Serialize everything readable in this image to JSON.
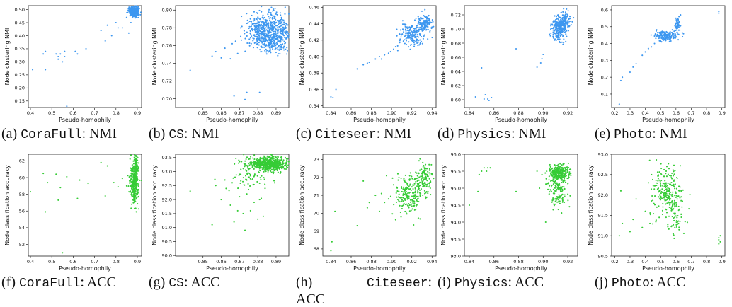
{
  "colors": {
    "nmi": "#3d97f0",
    "acc": "#36cc36"
  },
  "figure": {
    "captions": [
      {
        "prefix": "(a)",
        "dataset": "CoraFull",
        "metric": ": NMI"
      },
      {
        "prefix": "(b)",
        "dataset": "CS",
        "metric": ": NMI"
      },
      {
        "prefix": "(c)",
        "dataset": "Citeseer",
        "metric": ": NMI"
      },
      {
        "prefix": "(d)",
        "dataset": "Physics",
        "metric": ": NMI"
      },
      {
        "prefix": "(e)",
        "dataset": "Photo",
        "metric": ": NMI"
      },
      {
        "prefix": "(f)",
        "dataset": "CoraFull",
        "metric": ": ACC"
      },
      {
        "prefix": "(g)",
        "dataset": "CS",
        "metric": ": ACC"
      },
      {
        "prefix": "(h)",
        "dataset": "Citeseer",
        "metric": ": ACC"
      },
      {
        "prefix": "(i)",
        "dataset": "Physics",
        "metric": ": ACC"
      },
      {
        "prefix": "(j)",
        "dataset": "Photo",
        "metric": ": ACC"
      }
    ]
  },
  "chart_data": [
    {
      "type": "scatter",
      "color": "nmi",
      "xlabel": "Pseudo-homophily",
      "ylabel": "Node clustering NMI",
      "xlim": [
        0.39,
        0.92
      ],
      "ylim": [
        0.125,
        0.515
      ],
      "xticks": [
        0.4,
        0.5,
        0.6,
        0.7,
        0.8,
        0.9
      ],
      "xtick_labels": [
        "0.4",
        "0.5",
        "0.6",
        "0.7",
        "0.8",
        "0.9"
      ],
      "yticks": [
        0.15,
        0.2,
        0.25,
        0.3,
        0.35,
        0.4,
        0.45,
        0.5
      ],
      "ytick_labels": [
        "0.15",
        "0.20",
        "0.25",
        "0.30",
        "0.35",
        "0.40",
        "0.45",
        "0.50"
      ],
      "points": [
        [
          0.41,
          0.27
        ],
        [
          0.46,
          0.33
        ],
        [
          0.47,
          0.34
        ],
        [
          0.47,
          0.27
        ],
        [
          0.52,
          0.33
        ],
        [
          0.53,
          0.32
        ],
        [
          0.53,
          0.31
        ],
        [
          0.54,
          0.33
        ],
        [
          0.55,
          0.3
        ],
        [
          0.56,
          0.32
        ],
        [
          0.56,
          0.34
        ],
        [
          0.57,
          0.13
        ],
        [
          0.61,
          0.34
        ],
        [
          0.62,
          0.33
        ],
        [
          0.66,
          0.35
        ],
        [
          0.73,
          0.42
        ],
        [
          0.75,
          0.38
        ],
        [
          0.76,
          0.44
        ],
        [
          0.78,
          0.4
        ],
        [
          0.8,
          0.45
        ],
        [
          0.81,
          0.43
        ],
        [
          0.83,
          0.43
        ],
        [
          0.85,
          0.47
        ],
        [
          0.86,
          0.41
        ],
        [
          0.87,
          0.45
        ]
      ],
      "clusters": [
        {
          "cx": 0.886,
          "cy": 0.493,
          "sx": 0.012,
          "sy": 0.01,
          "n": 320
        }
      ]
    },
    {
      "type": "scatter",
      "color": "nmi",
      "xlabel": "Pseudo-homophily",
      "ylabel": "Node clustering NMI",
      "xlim": [
        0.835,
        0.897
      ],
      "ylim": [
        0.69,
        0.805
      ],
      "xticks": [
        0.85,
        0.86,
        0.87,
        0.88,
        0.89
      ],
      "xtick_labels": [
        "0.85",
        "0.86",
        "0.87",
        "0.88",
        "0.89"
      ],
      "yticks": [
        0.7,
        0.72,
        0.74,
        0.76,
        0.78,
        0.8
      ],
      "ytick_labels": [
        "0.70",
        "0.72",
        "0.74",
        "0.76",
        "0.78",
        "0.80"
      ],
      "points": [
        [
          0.843,
          0.732
        ],
        [
          0.855,
          0.748
        ],
        [
          0.857,
          0.753
        ],
        [
          0.86,
          0.746
        ],
        [
          0.862,
          0.757
        ],
        [
          0.865,
          0.745
        ],
        [
          0.866,
          0.762
        ],
        [
          0.867,
          0.703
        ],
        [
          0.869,
          0.751
        ],
        [
          0.871,
          0.766
        ],
        [
          0.873,
          0.699
        ],
        [
          0.874,
          0.707
        ],
        [
          0.878,
          0.798
        ],
        [
          0.881,
          0.707
        ]
      ],
      "clusters": [
        {
          "cx": 0.886,
          "cy": 0.778,
          "sx": 0.006,
          "sy": 0.01,
          "n": 520
        },
        {
          "cx": 0.888,
          "cy": 0.765,
          "sx": 0.005,
          "sy": 0.006,
          "n": 180
        }
      ]
    },
    {
      "type": "scatter",
      "color": "nmi",
      "xlabel": "Pseudo-homophily",
      "ylabel": "Node clustering NMI",
      "xlim": [
        0.832,
        0.944
      ],
      "ylim": [
        0.338,
        0.462
      ],
      "xticks": [
        0.84,
        0.86,
        0.88,
        0.9,
        0.92,
        0.94
      ],
      "xtick_labels": [
        "0.84",
        "0.86",
        "0.88",
        "0.90",
        "0.92",
        "0.94"
      ],
      "yticks": [
        0.34,
        0.36,
        0.38,
        0.4,
        0.42,
        0.44,
        0.46
      ],
      "ytick_labels": [
        "0.34",
        "0.36",
        "0.38",
        "0.40",
        "0.42",
        "0.44",
        "0.46"
      ],
      "points": [
        [
          0.84,
          0.351
        ],
        [
          0.842,
          0.35
        ],
        [
          0.845,
          0.36
        ],
        [
          0.866,
          0.385
        ],
        [
          0.872,
          0.39
        ],
        [
          0.876,
          0.392
        ],
        [
          0.878,
          0.393
        ],
        [
          0.884,
          0.397
        ],
        [
          0.888,
          0.4
        ],
        [
          0.89,
          0.397
        ],
        [
          0.893,
          0.402
        ],
        [
          0.897,
          0.404
        ],
        [
          0.899,
          0.406
        ],
        [
          0.902,
          0.409
        ],
        [
          0.904,
          0.412
        ],
        [
          0.906,
          0.413
        ],
        [
          0.908,
          0.417
        ]
      ],
      "clusters": [
        {
          "cx": 0.92,
          "cy": 0.426,
          "sx": 0.006,
          "sy": 0.006,
          "n": 170
        },
        {
          "cx": 0.932,
          "cy": 0.44,
          "sx": 0.004,
          "sy": 0.005,
          "n": 150
        }
      ]
    },
    {
      "type": "scatter",
      "color": "nmi",
      "xlabel": "Pseudo-homophily",
      "ylabel": "Node clustering NMI",
      "xlim": [
        0.836,
        0.928
      ],
      "ylim": [
        0.589,
        0.733
      ],
      "xticks": [
        0.84,
        0.86,
        0.88,
        0.9,
        0.92
      ],
      "xtick_labels": [
        "0.84",
        "0.86",
        "0.88",
        "0.90",
        "0.92"
      ],
      "yticks": [
        0.6,
        0.62,
        0.64,
        0.66,
        0.68,
        0.7,
        0.72
      ],
      "ytick_labels": [
        "0.60",
        "0.62",
        "0.64",
        "0.66",
        "0.68",
        "0.70",
        "0.72"
      ],
      "points": [
        [
          0.845,
          0.604
        ],
        [
          0.85,
          0.645
        ],
        [
          0.852,
          0.601
        ],
        [
          0.853,
          0.607
        ],
        [
          0.855,
          0.601
        ],
        [
          0.856,
          0.599
        ],
        [
          0.858,
          0.603
        ],
        [
          0.878,
          0.672
        ],
        [
          0.895,
          0.646
        ],
        [
          0.898,
          0.652
        ],
        [
          0.899,
          0.658
        ],
        [
          0.9,
          0.664
        ]
      ],
      "clusters": [
        {
          "cx": 0.913,
          "cy": 0.7,
          "sx": 0.0028,
          "sy": 0.008,
          "n": 260
        },
        {
          "cx": 0.918,
          "cy": 0.712,
          "sx": 0.003,
          "sy": 0.006,
          "n": 120
        }
      ]
    },
    {
      "type": "scatter",
      "color": "nmi",
      "xlabel": "Pseudo-homophily",
      "ylabel": "Node clustering NMI",
      "xlim": [
        0.18,
        0.92
      ],
      "ylim": [
        0.02,
        0.625
      ],
      "xticks": [
        0.2,
        0.3,
        0.4,
        0.5,
        0.6,
        0.7,
        0.8,
        0.9
      ],
      "xtick_labels": [
        "0.2",
        "0.3",
        "0.4",
        "0.5",
        "0.6",
        "0.7",
        "0.8",
        "0.9"
      ],
      "yticks": [
        0.1,
        0.2,
        0.3,
        0.4,
        0.5,
        0.6
      ],
      "ytick_labels": [
        "0.1",
        "0.2",
        "0.3",
        "0.4",
        "0.5",
        "0.6"
      ],
      "points": [
        [
          0.23,
          0.04
        ],
        [
          0.24,
          0.18
        ],
        [
          0.25,
          0.2
        ],
        [
          0.3,
          0.23
        ],
        [
          0.32,
          0.26
        ],
        [
          0.34,
          0.28
        ],
        [
          0.38,
          0.33
        ],
        [
          0.4,
          0.35
        ],
        [
          0.42,
          0.37
        ],
        [
          0.44,
          0.38
        ],
        [
          0.46,
          0.4
        ],
        [
          0.6,
          0.55
        ],
        [
          0.62,
          0.56
        ],
        [
          0.63,
          0.57
        ],
        [
          0.88,
          0.58
        ],
        [
          0.88,
          0.59
        ]
      ],
      "clusters": [
        {
          "cx": 0.53,
          "cy": 0.445,
          "sx": 0.04,
          "sy": 0.014,
          "n": 170
        },
        {
          "cx": 0.61,
          "cy": 0.51,
          "sx": 0.012,
          "sy": 0.02,
          "n": 40
        }
      ]
    },
    {
      "type": "scatter",
      "color": "acc",
      "xlabel": "Pseudo-homophily",
      "ylabel": "Node classification accuracy",
      "xlim": [
        0.39,
        0.92
      ],
      "ylim": [
        50.6,
        62.8
      ],
      "xticks": [
        0.4,
        0.5,
        0.6,
        0.7,
        0.8,
        0.9
      ],
      "xtick_labels": [
        "0.4",
        "0.5",
        "0.6",
        "0.7",
        "0.8",
        "0.9"
      ],
      "yticks": [
        52,
        54,
        56,
        58,
        60,
        62
      ],
      "ytick_labels": [
        "52",
        "54",
        "56",
        "58",
        "60",
        "62"
      ],
      "points": [
        [
          0.4,
          58.3
        ],
        [
          0.46,
          60.5
        ],
        [
          0.47,
          55.9
        ],
        [
          0.48,
          59.4
        ],
        [
          0.52,
          60.4
        ],
        [
          0.53,
          57.3
        ],
        [
          0.54,
          58.8
        ],
        [
          0.55,
          51.0
        ],
        [
          0.57,
          60.1
        ],
        [
          0.62,
          57.5
        ],
        [
          0.63,
          59.7
        ],
        [
          0.67,
          59.3
        ],
        [
          0.73,
          61.8
        ],
        [
          0.75,
          57.8
        ],
        [
          0.76,
          61.4
        ],
        [
          0.79,
          59.4
        ],
        [
          0.81,
          58.9
        ],
        [
          0.83,
          59.9
        ],
        [
          0.85,
          59.0
        ]
      ],
      "clusters": [
        {
          "cx": 0.886,
          "cy": 59.2,
          "sx": 0.01,
          "sy": 1.2,
          "n": 300
        },
        {
          "cx": 0.895,
          "cy": 61.0,
          "sx": 0.005,
          "sy": 0.9,
          "n": 120
        }
      ]
    },
    {
      "type": "scatter",
      "color": "acc",
      "xlabel": "Pseudo-homophily",
      "ylabel": "Node classification accuracy",
      "xlim": [
        0.835,
        0.897
      ],
      "ylim": [
        89.98,
        93.62
      ],
      "xticks": [
        0.85,
        0.86,
        0.87,
        0.88,
        0.89
      ],
      "xtick_labels": [
        "0.85",
        "0.86",
        "0.87",
        "0.88",
        "0.89"
      ],
      "yticks": [
        90.0,
        90.5,
        91.0,
        91.5,
        92.0,
        92.5,
        93.0,
        93.5
      ],
      "ytick_labels": [
        "90.0",
        "90.5",
        "91.0",
        "91.5",
        "92.0",
        "92.5",
        "93.0",
        "93.5"
      ],
      "points": [
        [
          0.843,
          92.3
        ],
        [
          0.855,
          91.1
        ],
        [
          0.857,
          92.5
        ],
        [
          0.86,
          92.0
        ],
        [
          0.862,
          92.7
        ],
        [
          0.865,
          91.8
        ],
        [
          0.866,
          92.6
        ],
        [
          0.867,
          91.2
        ],
        [
          0.869,
          91.6
        ],
        [
          0.87,
          92.1
        ],
        [
          0.872,
          91.5
        ],
        [
          0.873,
          90.9
        ],
        [
          0.874,
          92.2
        ],
        [
          0.876,
          91.6
        ],
        [
          0.878,
          91.9
        ],
        [
          0.88,
          91.3
        ],
        [
          0.881,
          92.0
        ],
        [
          0.883,
          91.4
        ],
        [
          0.884,
          92.4
        ]
      ],
      "clusters": [
        {
          "cx": 0.886,
          "cy": 93.28,
          "sx": 0.005,
          "sy": 0.12,
          "n": 600
        },
        {
          "cx": 0.876,
          "cy": 92.9,
          "sx": 0.006,
          "sy": 0.3,
          "n": 90
        }
      ]
    },
    {
      "type": "scatter",
      "color": "acc",
      "xlabel": "Pseudo-homophily",
      "ylabel": "Node classification accuracy",
      "xlim": [
        0.832,
        0.944
      ],
      "ylim": [
        67.6,
        73.3
      ],
      "xticks": [
        0.84,
        0.86,
        0.88,
        0.9,
        0.92,
        0.94
      ],
      "xtick_labels": [
        "0.84",
        "0.86",
        "0.88",
        "0.90",
        "0.92",
        "0.94"
      ],
      "yticks": [
        68,
        69,
        70,
        71,
        72,
        73
      ],
      "ytick_labels": [
        "68",
        "69",
        "70",
        "71",
        "72",
        "73"
      ],
      "points": [
        [
          0.84,
          67.9
        ],
        [
          0.841,
          68.4
        ],
        [
          0.844,
          70.1
        ],
        [
          0.866,
          69.3
        ],
        [
          0.872,
          71.8
        ],
        [
          0.876,
          70.3
        ],
        [
          0.878,
          70.6
        ],
        [
          0.884,
          71.0
        ],
        [
          0.888,
          70.1
        ],
        [
          0.89,
          71.1
        ],
        [
          0.893,
          70.6
        ],
        [
          0.895,
          72.1
        ],
        [
          0.897,
          70.8
        ]
      ],
      "clusters": [
        {
          "cx": 0.917,
          "cy": 71.0,
          "sx": 0.007,
          "sy": 0.5,
          "n": 200
        },
        {
          "cx": 0.932,
          "cy": 71.9,
          "sx": 0.004,
          "sy": 0.45,
          "n": 140
        }
      ]
    },
    {
      "type": "scatter",
      "color": "acc",
      "xlabel": "Pseudo-homophily",
      "ylabel": "Node classification accuracy",
      "xlim": [
        0.836,
        0.928
      ],
      "ylim": [
        93.0,
        96.0
      ],
      "xticks": [
        0.84,
        0.86,
        0.88,
        0.9,
        0.92
      ],
      "xtick_labels": [
        "0.84",
        "0.86",
        "0.88",
        "0.90",
        "0.92"
      ],
      "yticks": [
        93.0,
        93.5,
        94.0,
        94.5,
        95.0,
        95.5,
        96.0
      ],
      "ytick_labels": [
        "93.0",
        "93.5",
        "94.0",
        "94.5",
        "95.0",
        "95.5",
        "96.0"
      ],
      "points": [
        [
          0.84,
          94.5
        ],
        [
          0.847,
          94.9
        ],
        [
          0.848,
          95.4
        ],
        [
          0.85,
          95.5
        ],
        [
          0.852,
          95.6
        ],
        [
          0.854,
          95.5
        ],
        [
          0.855,
          95.6
        ],
        [
          0.857,
          95.6
        ],
        [
          0.878,
          94.9
        ],
        [
          0.895,
          95.5
        ],
        [
          0.897,
          95.0
        ],
        [
          0.899,
          95.4
        ],
        [
          0.902,
          94.0
        ]
      ],
      "clusters": [
        {
          "cx": 0.913,
          "cy": 95.45,
          "sx": 0.004,
          "sy": 0.12,
          "n": 260
        },
        {
          "cx": 0.912,
          "cy": 94.9,
          "sx": 0.004,
          "sy": 0.25,
          "n": 130
        }
      ]
    },
    {
      "type": "scatter",
      "color": "acc",
      "xlabel": "Pseudo-homophily",
      "ylabel": "Node classification accuracy",
      "xlim": [
        0.18,
        0.92
      ],
      "ylim": [
        90.5,
        93.0
      ],
      "xticks": [
        0.2,
        0.3,
        0.4,
        0.5,
        0.6,
        0.7,
        0.8,
        0.9
      ],
      "xtick_labels": [
        "0.2",
        "0.3",
        "0.4",
        "0.5",
        "0.6",
        "0.7",
        "0.8",
        "0.9"
      ],
      "yticks": [
        90.5,
        91.0,
        91.5,
        92.0,
        92.5,
        93.0
      ],
      "ytick_labels": [
        "90.5",
        "91.0",
        "91.5",
        "92.0",
        "92.5",
        "93.0"
      ],
      "points": [
        [
          0.23,
          91.0
        ],
        [
          0.24,
          92.1
        ],
        [
          0.25,
          91.3
        ],
        [
          0.3,
          91.1
        ],
        [
          0.32,
          91.4
        ],
        [
          0.34,
          91.9
        ],
        [
          0.38,
          91.2
        ],
        [
          0.4,
          91.6
        ],
        [
          0.42,
          92.3
        ],
        [
          0.43,
          91.3
        ],
        [
          0.88,
          90.8
        ],
        [
          0.88,
          90.9
        ],
        [
          0.89,
          90.85
        ],
        [
          0.89,
          91.0
        ],
        [
          0.88,
          90.95
        ]
      ],
      "clusters": [
        {
          "cx": 0.535,
          "cy": 92.1,
          "sx": 0.045,
          "sy": 0.3,
          "n": 220
        },
        {
          "cx": 0.6,
          "cy": 91.5,
          "sx": 0.025,
          "sy": 0.3,
          "n": 60
        }
      ]
    }
  ]
}
